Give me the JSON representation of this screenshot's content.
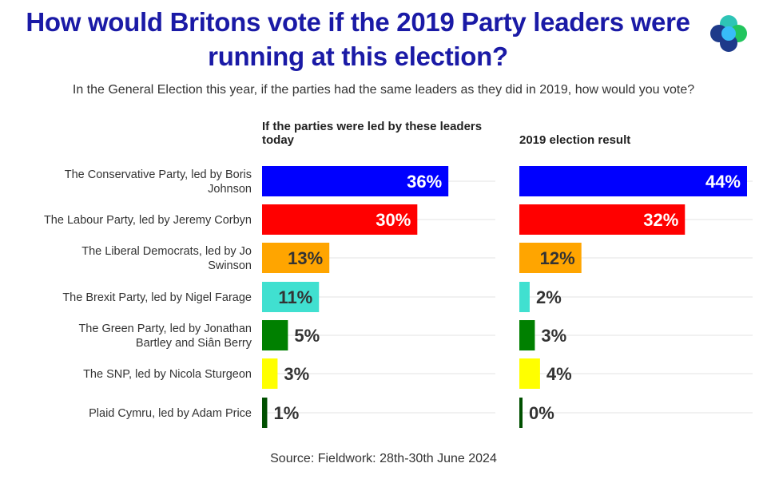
{
  "header": {
    "title_line1": "How would Britons vote if the 2019 Party leaders were",
    "title_line2": "running at this election?",
    "subtitle": "In the General Election this year, if the parties had the same leaders as they did in 2019, how would you vote?"
  },
  "logo": {
    "icon": "four-circle-logo-icon",
    "colors": [
      "#2ec4b6",
      "#1e3a8a",
      "#22c55e",
      "#38bdf8"
    ]
  },
  "chart_data": {
    "type": "bar",
    "orientation": "horizontal",
    "categories": [
      "The Conservative Party, led by Boris Johnson",
      "The Labour Party, led by Jeremy Corbyn",
      "The Liberal Democrats, led by Jo Swinson",
      "The Brexit Party, led by Nigel Farage",
      "The Green Party, led by Jonathan Bartley and Siân Berry",
      "The SNP, led by Nicola Sturgeon",
      "Plaid Cymru, led by Adam Price"
    ],
    "colors": [
      "#0000ff",
      "#ff0000",
      "#ffa500",
      "#40e0d0",
      "#008000",
      "#ffff00",
      "#005000"
    ],
    "series": [
      {
        "name": "If the parties were led by these leaders today",
        "values": [
          36,
          30,
          13,
          11,
          5,
          3,
          1
        ],
        "labels": [
          "36%",
          "30%",
          "13%",
          "11%",
          "5%",
          "3%",
          "1%"
        ]
      },
      {
        "name": "2019 election result",
        "values": [
          44,
          32,
          12,
          2,
          3,
          4,
          0
        ],
        "labels": [
          "44%",
          "32%",
          "12%",
          "2%",
          "3%",
          "4%",
          "0%"
        ]
      }
    ],
    "value_unit": "%",
    "xlim": [
      0,
      44
    ],
    "grid": true
  },
  "footer": {
    "source": "Source: Fieldwork: 28th-30th June 2024"
  }
}
